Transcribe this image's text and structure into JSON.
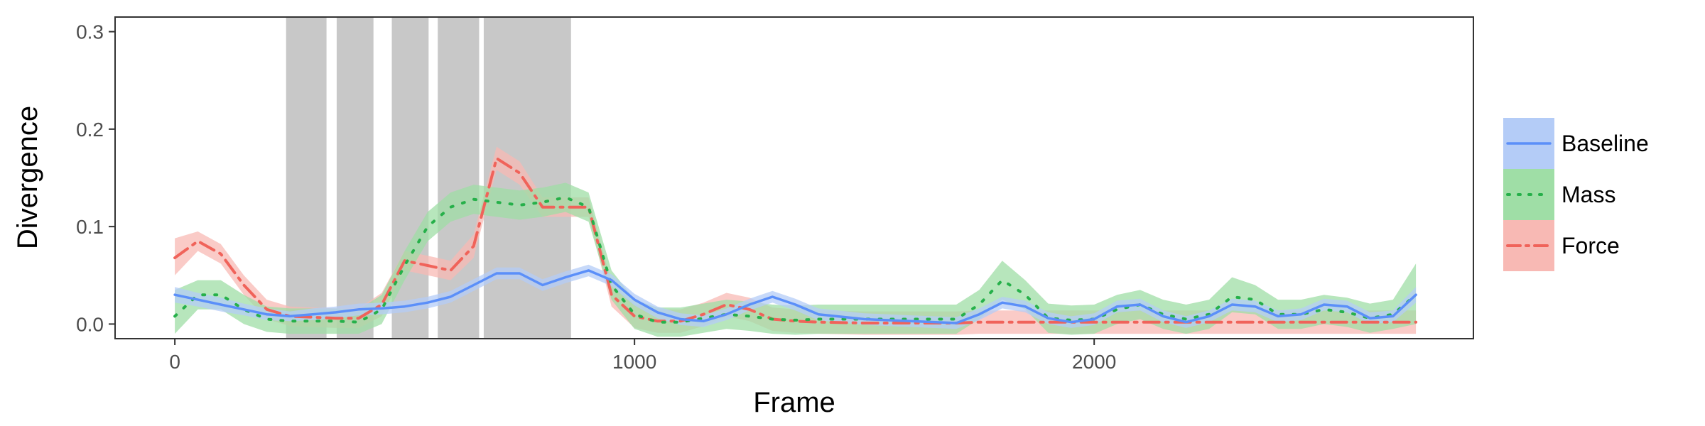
{
  "chart_data": {
    "type": "line",
    "xlabel": "Frame",
    "ylabel": "Divergence",
    "xlim": [
      -130,
      2825
    ],
    "ylim": [
      -0.015,
      0.315
    ],
    "x_ticks": [
      0,
      1000,
      2000
    ],
    "x_tick_labels": [
      "0",
      "1000",
      "2000"
    ],
    "y_ticks": [
      0.0,
      0.1,
      0.2,
      0.3
    ],
    "y_tick_labels": [
      "0.0",
      "0.1",
      "0.2",
      "0.3"
    ],
    "grid": false,
    "legend_position": "right",
    "shaded_regions": [
      [
        242,
        330
      ],
      [
        352,
        432
      ],
      [
        472,
        552
      ],
      [
        572,
        662
      ],
      [
        672,
        862
      ]
    ],
    "shaded_color": "#c8c8c8",
    "series": [
      {
        "name": "Baseline",
        "color": "#5b8ff9",
        "band_color": "#b4ccf7",
        "line_style": "solid",
        "x": [
          0,
          50,
          100,
          150,
          200,
          250,
          300,
          350,
          400,
          450,
          500,
          550,
          600,
          650,
          700,
          750,
          800,
          850,
          900,
          950,
          1000,
          1050,
          1100,
          1150,
          1200,
          1250,
          1300,
          1350,
          1400,
          1500,
          1600,
          1700,
          1750,
          1800,
          1850,
          1900,
          1950,
          2000,
          2050,
          2100,
          2150,
          2200,
          2250,
          2300,
          2350,
          2400,
          2450,
          2500,
          2550,
          2600,
          2650,
          2700
        ],
        "y": [
          0.03,
          0.025,
          0.02,
          0.015,
          0.01,
          0.008,
          0.01,
          0.012,
          0.015,
          0.016,
          0.018,
          0.022,
          0.028,
          0.04,
          0.052,
          0.052,
          0.04,
          0.048,
          0.055,
          0.045,
          0.025,
          0.012,
          0.005,
          0.003,
          0.01,
          0.02,
          0.028,
          0.02,
          0.01,
          0.005,
          0.003,
          0.001,
          0.01,
          0.022,
          0.018,
          0.006,
          0.002,
          0.005,
          0.018,
          0.02,
          0.008,
          0.002,
          0.008,
          0.02,
          0.018,
          0.008,
          0.01,
          0.02,
          0.018,
          0.006,
          0.008,
          0.03
        ],
        "lower": [
          0.022,
          0.018,
          0.013,
          0.009,
          0.004,
          0.003,
          0.004,
          0.006,
          0.009,
          0.01,
          0.012,
          0.016,
          0.022,
          0.034,
          0.046,
          0.046,
          0.034,
          0.042,
          0.049,
          0.039,
          0.019,
          0.006,
          -0.001,
          -0.003,
          0.004,
          0.014,
          0.022,
          0.014,
          0.004,
          -0.001,
          -0.003,
          -0.005,
          0.004,
          0.016,
          0.012,
          0.0,
          -0.004,
          -0.001,
          0.012,
          0.014,
          0.002,
          -0.004,
          0.002,
          0.014,
          0.012,
          0.002,
          0.004,
          0.014,
          0.012,
          0.0,
          0.002,
          0.022
        ],
        "upper": [
          0.038,
          0.032,
          0.027,
          0.021,
          0.016,
          0.013,
          0.016,
          0.018,
          0.021,
          0.022,
          0.024,
          0.028,
          0.034,
          0.046,
          0.058,
          0.058,
          0.046,
          0.054,
          0.061,
          0.051,
          0.031,
          0.018,
          0.011,
          0.009,
          0.016,
          0.026,
          0.034,
          0.026,
          0.016,
          0.011,
          0.009,
          0.007,
          0.016,
          0.028,
          0.024,
          0.012,
          0.008,
          0.011,
          0.024,
          0.026,
          0.014,
          0.008,
          0.014,
          0.026,
          0.024,
          0.014,
          0.016,
          0.026,
          0.024,
          0.012,
          0.014,
          0.038
        ]
      },
      {
        "name": "Mass",
        "color": "#26b04a",
        "band_color": "#9fdea6",
        "line_style": "dotted",
        "x": [
          0,
          50,
          100,
          150,
          200,
          250,
          300,
          350,
          400,
          450,
          500,
          550,
          600,
          650,
          700,
          750,
          800,
          850,
          900,
          950,
          1000,
          1050,
          1100,
          1150,
          1200,
          1250,
          1300,
          1350,
          1400,
          1500,
          1600,
          1700,
          1750,
          1800,
          1850,
          1900,
          1950,
          2000,
          2050,
          2100,
          2150,
          2200,
          2250,
          2300,
          2350,
          2400,
          2450,
          2500,
          2550,
          2600,
          2650,
          2700
        ],
        "y": [
          0.008,
          0.03,
          0.03,
          0.015,
          0.005,
          0.003,
          0.003,
          0.003,
          0.002,
          0.015,
          0.06,
          0.1,
          0.12,
          0.128,
          0.125,
          0.122,
          0.125,
          0.13,
          0.12,
          0.04,
          0.01,
          0.002,
          0.002,
          0.006,
          0.01,
          0.008,
          0.005,
          0.004,
          0.005,
          0.005,
          0.005,
          0.005,
          0.02,
          0.045,
          0.03,
          0.006,
          0.004,
          0.005,
          0.015,
          0.02,
          0.01,
          0.005,
          0.01,
          0.028,
          0.025,
          0.01,
          0.01,
          0.015,
          0.012,
          0.006,
          0.01,
          0.03
        ],
        "lower": [
          -0.01,
          0.015,
          0.015,
          0.0,
          -0.008,
          -0.01,
          -0.01,
          -0.01,
          -0.01,
          0.0,
          0.045,
          0.085,
          0.105,
          0.113,
          0.11,
          0.107,
          0.11,
          0.115,
          0.105,
          0.025,
          -0.005,
          -0.013,
          -0.013,
          -0.009,
          -0.005,
          -0.007,
          -0.01,
          -0.011,
          -0.01,
          -0.01,
          -0.01,
          -0.01,
          0.005,
          0.025,
          0.015,
          -0.009,
          -0.011,
          -0.01,
          0.0,
          0.005,
          -0.005,
          -0.01,
          -0.005,
          0.012,
          0.01,
          -0.005,
          -0.005,
          0.0,
          -0.003,
          -0.009,
          -0.005,
          0.0
        ],
        "upper": [
          0.035,
          0.045,
          0.045,
          0.03,
          0.018,
          0.016,
          0.016,
          0.016,
          0.015,
          0.03,
          0.075,
          0.115,
          0.135,
          0.143,
          0.14,
          0.137,
          0.14,
          0.145,
          0.135,
          0.055,
          0.025,
          0.017,
          0.017,
          0.021,
          0.025,
          0.023,
          0.02,
          0.019,
          0.02,
          0.02,
          0.02,
          0.02,
          0.035,
          0.065,
          0.045,
          0.021,
          0.019,
          0.02,
          0.03,
          0.035,
          0.025,
          0.02,
          0.025,
          0.048,
          0.04,
          0.025,
          0.025,
          0.03,
          0.027,
          0.021,
          0.025,
          0.062
        ]
      },
      {
        "name": "Force",
        "color": "#f0635a",
        "band_color": "#f8b9b4",
        "line_style": "dashdot",
        "x": [
          0,
          50,
          100,
          150,
          200,
          250,
          300,
          350,
          400,
          450,
          500,
          550,
          600,
          650,
          700,
          750,
          800,
          850,
          900,
          950,
          1000,
          1050,
          1100,
          1150,
          1200,
          1250,
          1300,
          1350,
          1400,
          1500,
          1600,
          1700,
          1750,
          1800,
          1850,
          1900,
          1950,
          2000,
          2050,
          2100,
          2150,
          2200,
          2250,
          2300,
          2350,
          2400,
          2450,
          2500,
          2550,
          2600,
          2650,
          2700
        ],
        "y": [
          0.068,
          0.085,
          0.072,
          0.04,
          0.015,
          0.008,
          0.007,
          0.006,
          0.006,
          0.02,
          0.065,
          0.06,
          0.055,
          0.08,
          0.17,
          0.155,
          0.12,
          0.12,
          0.12,
          0.03,
          0.008,
          0.003,
          0.003,
          0.01,
          0.02,
          0.015,
          0.005,
          0.003,
          0.002,
          0.001,
          0.001,
          0.001,
          0.002,
          0.002,
          0.002,
          0.002,
          0.002,
          0.002,
          0.002,
          0.002,
          0.002,
          0.002,
          0.002,
          0.002,
          0.002,
          0.002,
          0.002,
          0.002,
          0.002,
          0.002,
          0.002,
          0.002
        ],
        "lower": [
          0.05,
          0.075,
          0.062,
          0.03,
          0.005,
          -0.002,
          -0.003,
          -0.004,
          -0.004,
          0.008,
          0.055,
          0.05,
          0.045,
          0.068,
          0.158,
          0.143,
          0.11,
          0.11,
          0.11,
          0.018,
          -0.004,
          -0.009,
          -0.009,
          -0.002,
          0.008,
          0.003,
          -0.007,
          -0.009,
          -0.01,
          -0.011,
          -0.011,
          -0.011,
          -0.01,
          -0.01,
          -0.01,
          -0.01,
          -0.01,
          -0.01,
          -0.01,
          -0.01,
          -0.01,
          -0.01,
          -0.01,
          -0.01,
          -0.01,
          -0.01,
          -0.01,
          -0.01,
          -0.01,
          -0.01,
          -0.01,
          -0.01
        ],
        "upper": [
          0.088,
          0.095,
          0.082,
          0.05,
          0.025,
          0.018,
          0.017,
          0.016,
          0.016,
          0.032,
          0.075,
          0.07,
          0.065,
          0.092,
          0.182,
          0.167,
          0.13,
          0.13,
          0.13,
          0.042,
          0.02,
          0.015,
          0.015,
          0.022,
          0.032,
          0.027,
          0.017,
          0.015,
          0.014,
          0.013,
          0.013,
          0.013,
          0.014,
          0.014,
          0.014,
          0.014,
          0.014,
          0.014,
          0.014,
          0.014,
          0.014,
          0.014,
          0.014,
          0.014,
          0.014,
          0.014,
          0.014,
          0.014,
          0.014,
          0.014,
          0.014,
          0.014
        ]
      }
    ]
  }
}
